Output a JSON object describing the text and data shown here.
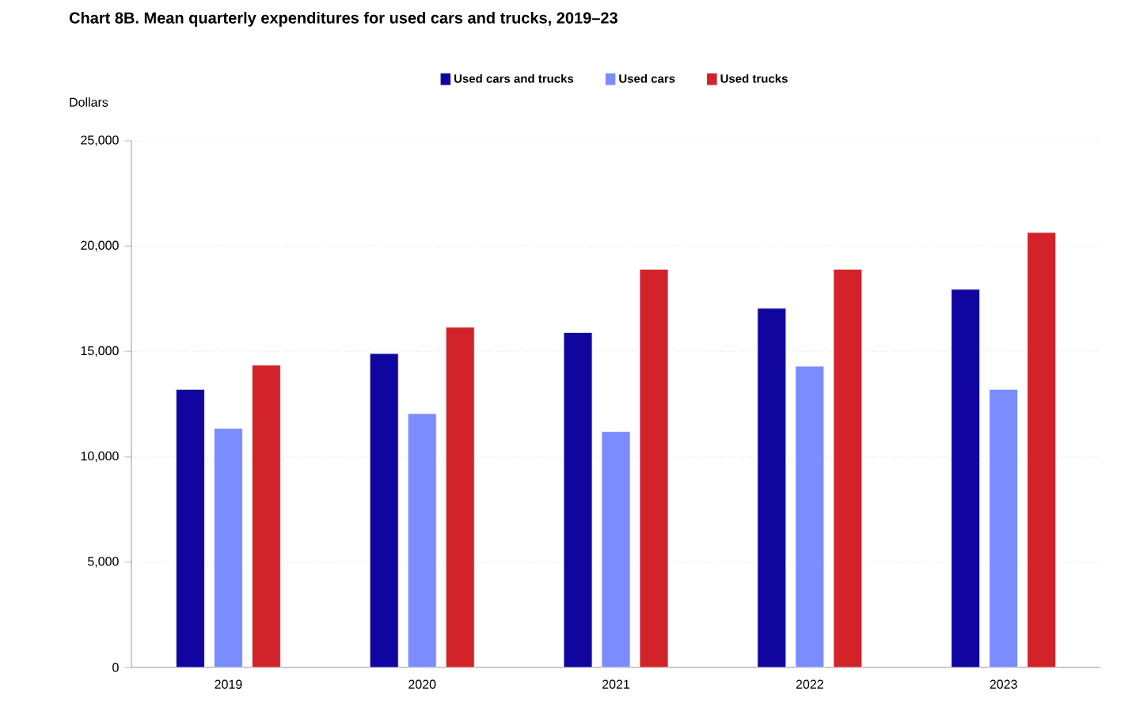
{
  "chart_data": {
    "type": "bar",
    "title": "Chart 8B. Mean quarterly expenditures for used cars and trucks, 2019–23",
    "ylabel": "Dollars",
    "categories": [
      "2019",
      "2020",
      "2021",
      "2022",
      "2023"
    ],
    "series": [
      {
        "name": "Used cars and trucks",
        "color": "#10069f",
        "values": [
          13200,
          14900,
          15900,
          17050,
          17950
        ]
      },
      {
        "name": "Used cars",
        "color": "#7b8cff",
        "values": [
          11350,
          12050,
          11200,
          14300,
          13200
        ]
      },
      {
        "name": "Used trucks",
        "color": "#d2232a",
        "values": [
          14350,
          16150,
          18900,
          18900,
          20650
        ]
      }
    ],
    "ylim": [
      0,
      25000
    ],
    "yticks": [
      {
        "value": 0,
        "label": "0"
      },
      {
        "value": 5000,
        "label": "5,000"
      },
      {
        "value": 10000,
        "label": "10,000"
      },
      {
        "value": 15000,
        "label": "15,000"
      },
      {
        "value": 20000,
        "label": "20,000"
      },
      {
        "value": 25000,
        "label": "25,000"
      }
    ],
    "grid": "y",
    "legend": "top"
  }
}
